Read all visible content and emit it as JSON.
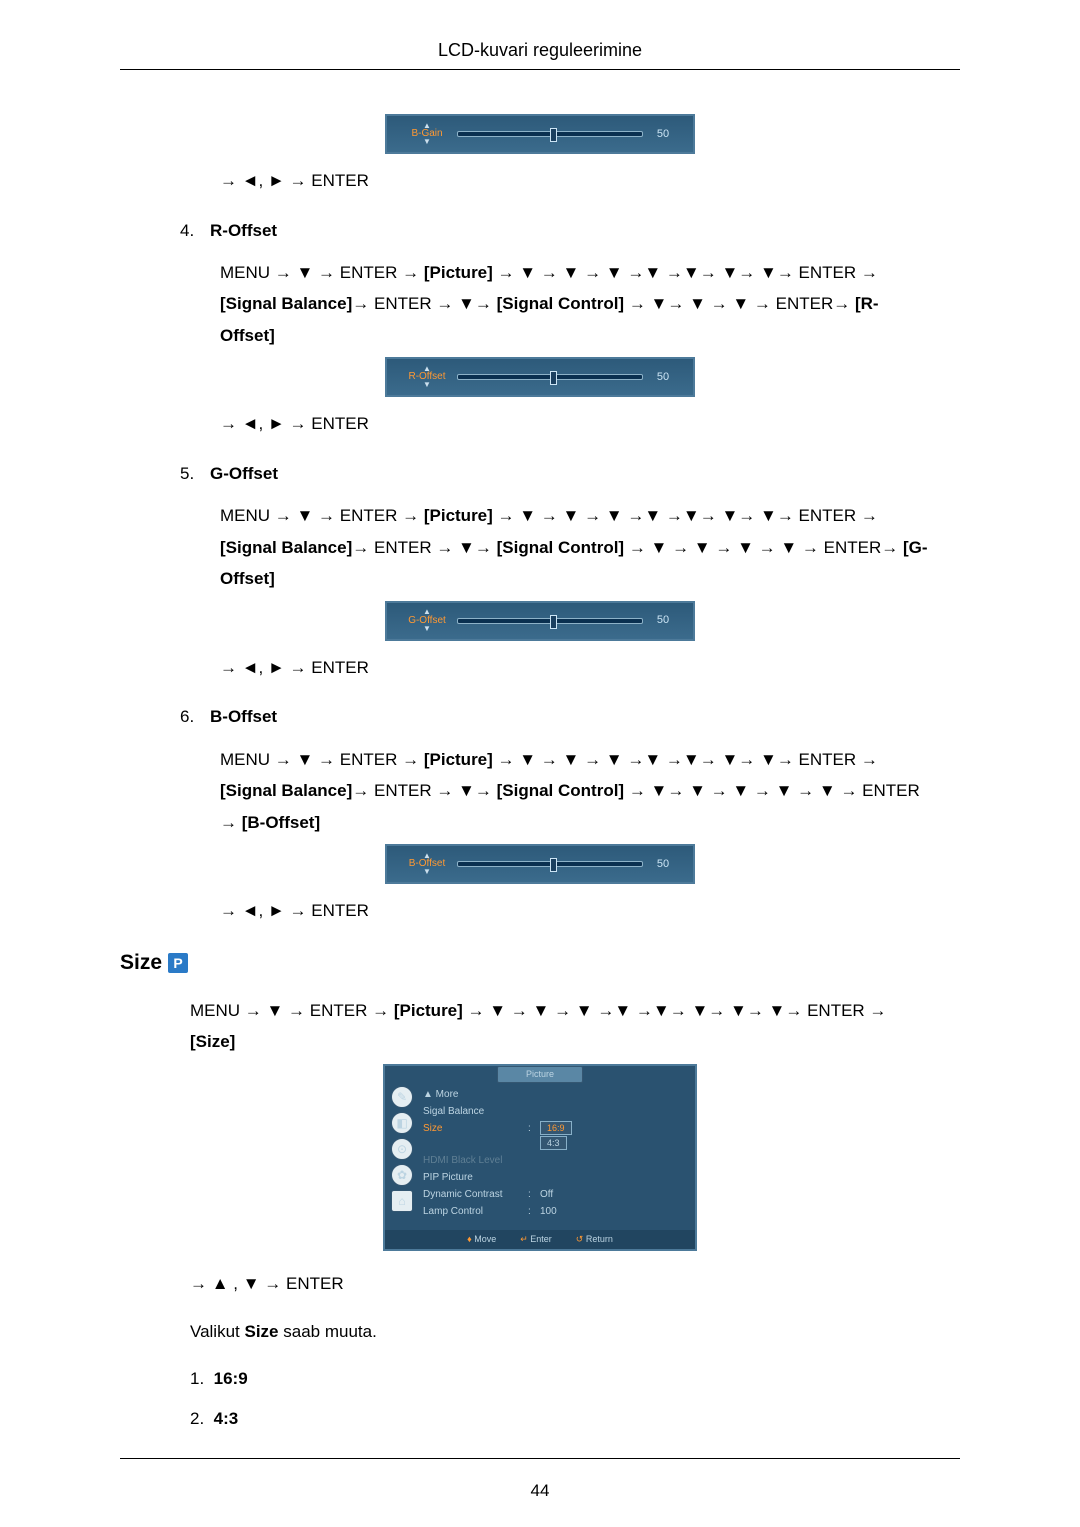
{
  "header": {
    "title": "LCD-kuvari reguleerimine"
  },
  "nav_suffix_lr": "→ ◄, ► → ENTER",
  "nav_suffix_ud": "→ ▲ , ▼ → ENTER",
  "sliders": {
    "bgain": {
      "label": "B-Gain",
      "value": "50",
      "value_color": "#9fc5dc",
      "label_color": "#ff9933"
    },
    "roffset": {
      "label": "R-Offset",
      "value": "50",
      "value_color": "#9fc5dc",
      "label_color": "#ff9933"
    },
    "goffset": {
      "label": "G-Offset",
      "value": "50",
      "value_color": "#9fc5dc",
      "label_color": "#ff9933"
    },
    "boffset": {
      "label": "B-Offset",
      "value": "50",
      "value_color": "#9fc5dc",
      "label_color": "#ff9933"
    }
  },
  "items": {
    "i4": {
      "num": "4.",
      "label": "R-Offset",
      "path_html": "MENU → ▼ → ENTER → <b class='bracket'>[Picture]</b> → ▼ → ▼ → ▼ →▼ →▼→ ▼→ ▼→ ENTER → <b class='bracket'>[Signal Balance]</b>→ ENTER → ▼→ <b class='bracket'>[Signal Control]</b> → ▼→ ▼ → ▼ → ENTER→ <b class='bracket'>[R-Offset]</b>"
    },
    "i5": {
      "num": "5.",
      "label": "G-Offset",
      "path_html": "MENU → ▼ → ENTER → <b class='bracket'>[Picture]</b> → ▼ → ▼ → ▼ →▼ →▼→ ▼→ ▼→ ENTER → <b class='bracket'>[Signal Balance]</b>→ ENTER → ▼→ <b class='bracket'>[Signal Control]</b> → ▼ → ▼ → ▼ → ▼ → ENTER→ <b class='bracket'>[G-Offset]</b>"
    },
    "i6": {
      "num": "6.",
      "label": "B-Offset",
      "path_html": "MENU → ▼ → ENTER → <b class='bracket'>[Picture]</b> → ▼ → ▼ → ▼ →▼ →▼→ ▼→ ▼→ ENTER → <b class='bracket'>[Signal Balance]</b>→ ENTER → ▼→ <b class='bracket'>[Signal Control]</b> → ▼→ ▼ → ▼ → ▼ → ▼ → ENTER → <b class='bracket'>[B-Offset]</b>"
    }
  },
  "size_section": {
    "heading": "Size",
    "badge": "P",
    "path_html": "MENU → ▼ → ENTER → <b class='bracket'>[Picture]</b> → ▼ → ▼ → ▼ →▼ →▼→ ▼→ ▼→ ▼→ ENTER → <b class='bracket'>[Size]</b>",
    "description_html": "Valikut <b>Size</b> saab muuta.",
    "options": {
      "o1": {
        "num": "1.",
        "label": "16:9"
      },
      "o2": {
        "num": "2.",
        "label": "4:3"
      }
    }
  },
  "osd": {
    "tab": "Picture",
    "rows": {
      "r0": {
        "label": "▲ More"
      },
      "r1": {
        "label": "Sigal Balance"
      },
      "r2": {
        "label": "Size",
        "sel1": "16:9",
        "sel2": "4:3"
      },
      "r3": {
        "label": "HDMI Black Level"
      },
      "r4": {
        "label": "PIP Picture"
      },
      "r5": {
        "label": "Dynamic Contrast",
        "val": "Off"
      },
      "r6": {
        "label": "Lamp Control",
        "val": "100"
      }
    },
    "footer": {
      "f1": "Move",
      "f2": "Enter",
      "f3": "Return"
    },
    "icons": {
      "i1": "✎",
      "i2": "◧",
      "i3": "⊙",
      "i4": "✿",
      "i5": "⌂"
    },
    "colors": {
      "bg": "#2a5270",
      "highlight": "#ff9933",
      "dim": "#5f7f94",
      "text": "#bcd4e2"
    }
  },
  "page_number": "44"
}
